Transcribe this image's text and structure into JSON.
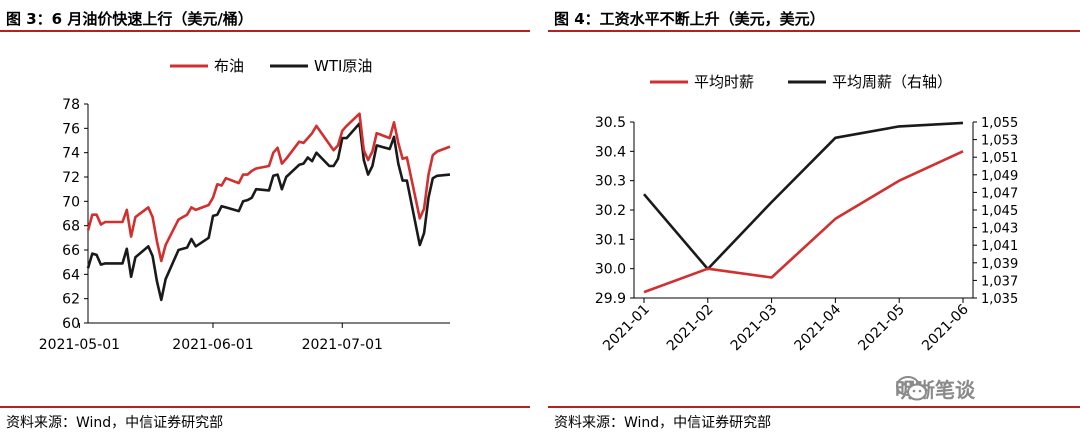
{
  "left": {
    "title": "图 3：6 月油价快速上行（美元/桶）",
    "source": "资料来源：Wind，中信证券研究部"
  },
  "right": {
    "title": "图 4：工资水平不断上升（美元，美元）",
    "source": "资料来源：Wind，中信证券研究部"
  },
  "watermark": {
    "text": "明晰笔谈"
  },
  "colors": {
    "red": "#d32f2f",
    "black": "#1a1a1a",
    "rule": "#b22222"
  },
  "chart_data": [
    {
      "type": "line",
      "title": "",
      "legend_position": "top",
      "x_ticks": [
        "2021-05-01",
        "2021-06-01",
        "2021-07-01"
      ],
      "x_range": [
        "2021-05-03",
        "2021-07-26"
      ],
      "ylim": [
        60,
        78
      ],
      "y_ticks": [
        60,
        62,
        64,
        66,
        68,
        70,
        72,
        74,
        76,
        78
      ],
      "grid": false,
      "series": [
        {
          "name": "布油",
          "color": "#d32f2f",
          "x": [
            "2021-05-03",
            "2021-05-04",
            "2021-05-05",
            "2021-05-06",
            "2021-05-07",
            "2021-05-10",
            "2021-05-11",
            "2021-05-12",
            "2021-05-13",
            "2021-05-14",
            "2021-05-17",
            "2021-05-18",
            "2021-05-19",
            "2021-05-20",
            "2021-05-21",
            "2021-05-24",
            "2021-05-25",
            "2021-05-26",
            "2021-05-27",
            "2021-05-28",
            "2021-05-31",
            "2021-06-01",
            "2021-06-02",
            "2021-06-03",
            "2021-06-04",
            "2021-06-07",
            "2021-06-08",
            "2021-06-09",
            "2021-06-10",
            "2021-06-11",
            "2021-06-14",
            "2021-06-15",
            "2021-06-16",
            "2021-06-17",
            "2021-06-18",
            "2021-06-21",
            "2021-06-22",
            "2021-06-23",
            "2021-06-24",
            "2021-06-25",
            "2021-06-28",
            "2021-06-29",
            "2021-06-30",
            "2021-07-01",
            "2021-07-02",
            "2021-07-05",
            "2021-07-06",
            "2021-07-07",
            "2021-07-08",
            "2021-07-09",
            "2021-07-12",
            "2021-07-13",
            "2021-07-14",
            "2021-07-15",
            "2021-07-16",
            "2021-07-19",
            "2021-07-20",
            "2021-07-21",
            "2021-07-22",
            "2021-07-23",
            "2021-07-26"
          ],
          "values": [
            67.6,
            68.9,
            68.9,
            68.1,
            68.3,
            68.3,
            68.3,
            69.3,
            67.1,
            68.7,
            69.5,
            68.7,
            66.7,
            65.1,
            66.4,
            68.5,
            68.7,
            68.9,
            69.5,
            69.3,
            69.7,
            70.3,
            71.4,
            71.3,
            71.9,
            71.5,
            72.2,
            72.2,
            72.5,
            72.7,
            72.9,
            74.0,
            74.4,
            73.1,
            73.5,
            74.9,
            74.8,
            75.2,
            75.6,
            76.2,
            74.7,
            74.2,
            74.6,
            75.8,
            76.2,
            77.2,
            74.2,
            73.4,
            74.1,
            75.6,
            75.2,
            76.5,
            74.8,
            73.5,
            73.6,
            68.6,
            69.4,
            72.2,
            73.8,
            74.1,
            74.5
          ],
          "note_trimmed": false
        },
        {
          "name": "WTI原油",
          "color": "#1a1a1a",
          "values_approx": [
            64.5,
            65.7,
            65.6,
            64.8,
            64.9,
            64.9,
            64.9,
            66.1,
            63.8,
            65.4,
            66.3,
            65.5,
            63.4,
            61.9,
            63.6,
            66.0,
            66.1,
            66.2,
            66.9,
            66.3,
            67.0,
            68.8,
            68.9,
            69.6,
            69.5,
            69.2,
            70.0,
            70.1,
            70.3,
            71.0,
            70.9,
            72.1,
            72.2,
            71.0,
            72.0,
            73.0,
            73.1,
            73.6,
            73.3,
            74.0,
            72.9,
            72.9,
            73.5,
            75.2,
            75.2,
            76.4,
            73.4,
            72.2,
            72.9,
            74.6,
            74.3,
            75.3,
            73.1,
            71.7,
            71.7,
            66.4,
            67.4,
            70.3,
            71.9,
            72.1,
            72.2
          ],
          "x": [
            "2021-05-03",
            "2021-05-04",
            "2021-05-05",
            "2021-05-06",
            "2021-05-07",
            "2021-05-10",
            "2021-05-11",
            "2021-05-12",
            "2021-05-13",
            "2021-05-14",
            "2021-05-17",
            "2021-05-18",
            "2021-05-19",
            "2021-05-20",
            "2021-05-21",
            "2021-05-24",
            "2021-05-25",
            "2021-05-26",
            "2021-05-27",
            "2021-05-28",
            "2021-05-31",
            "2021-06-01",
            "2021-06-02",
            "2021-06-03",
            "2021-06-04",
            "2021-06-07",
            "2021-06-08",
            "2021-06-09",
            "2021-06-10",
            "2021-06-11",
            "2021-06-14",
            "2021-06-15",
            "2021-06-16",
            "2021-06-17",
            "2021-06-18",
            "2021-06-21",
            "2021-06-22",
            "2021-06-23",
            "2021-06-24",
            "2021-06-25",
            "2021-06-28",
            "2021-06-29",
            "2021-06-30",
            "2021-07-01",
            "2021-07-02",
            "2021-07-05",
            "2021-07-06",
            "2021-07-07",
            "2021-07-08",
            "2021-07-09",
            "2021-07-12",
            "2021-07-13",
            "2021-07-14",
            "2021-07-15",
            "2021-07-16",
            "2021-07-19",
            "2021-07-20",
            "2021-07-21",
            "2021-07-22",
            "2021-07-23",
            "2021-07-26"
          ]
        }
      ]
    },
    {
      "type": "line",
      "title": "",
      "legend_position": "top",
      "categories": [
        "2021-01",
        "2021-02",
        "2021-03",
        "2021-04",
        "2021-05",
        "2021-06"
      ],
      "ylim": [
        29.9,
        30.5
      ],
      "y_ticks": [
        29.9,
        30.0,
        30.1,
        30.2,
        30.3,
        30.4,
        30.5
      ],
      "y2lim": [
        1035,
        1055
      ],
      "y2_ticks": [
        "1,035",
        "1,037",
        "1,039",
        "1,041",
        "1,043",
        "1,045",
        "1,047",
        "1,049",
        "1,051",
        "1,053",
        "1,055"
      ],
      "y2_tick_values": [
        1035,
        1037,
        1039,
        1041,
        1043,
        1045,
        1047,
        1049,
        1051,
        1053,
        1055
      ],
      "grid": false,
      "series": [
        {
          "name": "平均时薪",
          "color": "#d32f2f",
          "axis": "left",
          "values": [
            29.92,
            30.0,
            29.97,
            30.17,
            30.3,
            30.4
          ]
        },
        {
          "name": "平均周薪（右轴）",
          "color": "#1a1a1a",
          "axis": "right",
          "values": [
            1046.8,
            1038.3,
            1045.9,
            1053.2,
            1054.5,
            1054.9
          ]
        }
      ]
    }
  ]
}
